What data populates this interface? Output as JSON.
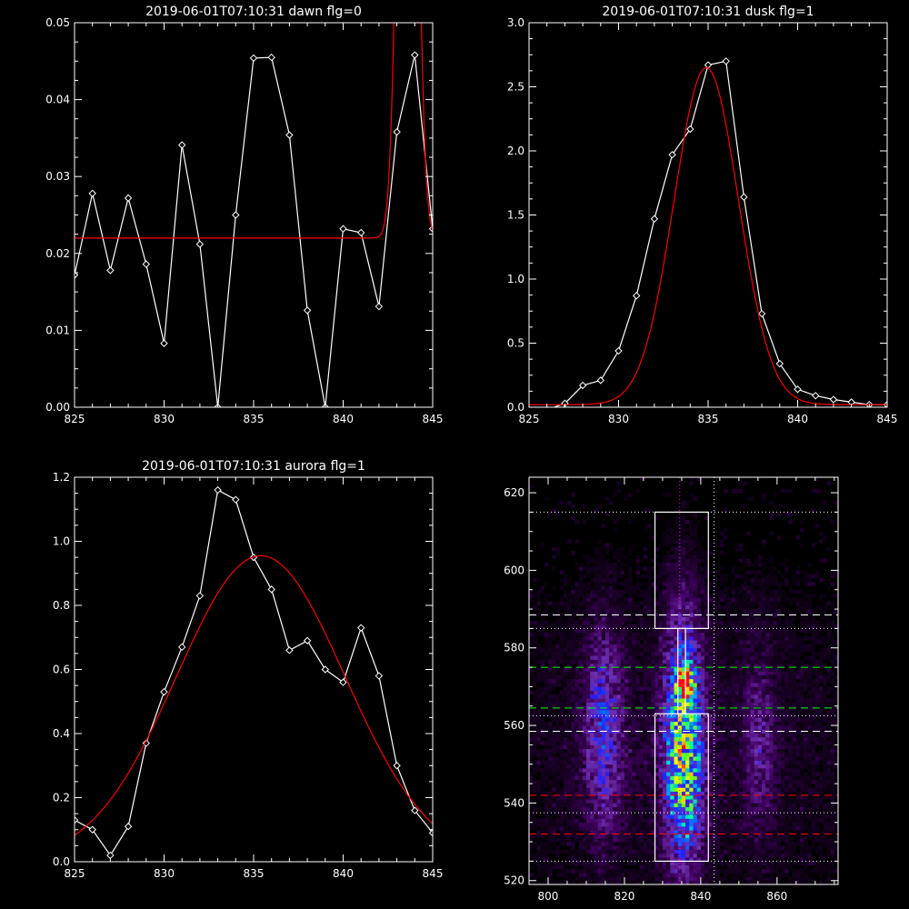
{
  "chart_data": [
    {
      "type": "line",
      "title": "2019-06-01T07:10:31 dawn flg=0",
      "xlim": [
        825,
        845
      ],
      "ylim": [
        0,
        0.05
      ],
      "xticks": [
        "825",
        "830",
        "835",
        "840",
        "845"
      ],
      "yticks": [
        "0.00",
        "0.01",
        "0.02",
        "0.03",
        "0.04",
        "0.05"
      ],
      "series": [
        {
          "color": "#ffffff",
          "marker": "diamond",
          "x": [
            825,
            826,
            827,
            828,
            829,
            830,
            831,
            832,
            833,
            834,
            835,
            836,
            837,
            838,
            839,
            840,
            841,
            842,
            843,
            844,
            845
          ],
          "y": [
            0.0172,
            0.0278,
            0.0178,
            0.0272,
            0.0186,
            0.0083,
            0.0341,
            0.0212,
            0.0,
            0.025,
            0.0454,
            0.0455,
            0.0354,
            0.0126,
            0.0,
            0.0232,
            0.0227,
            0.0131,
            0.0358,
            0.0458,
            0.0232
          ]
        },
        {
          "color": "#ff0000",
          "marker": "none",
          "model": "gaussian",
          "baseline": 0.022,
          "amplitude": 0.12,
          "center": 843.6,
          "sigma": 0.45
        }
      ]
    },
    {
      "type": "line",
      "title": "2019-06-01T07:10:31 dusk flg=1",
      "xlim": [
        825,
        845
      ],
      "ylim": [
        0,
        3.0
      ],
      "xticks": [
        "825",
        "830",
        "835",
        "840",
        "845"
      ],
      "yticks": [
        "0.0",
        "0.5",
        "1.0",
        "1.5",
        "2.0",
        "2.5",
        "3.0"
      ],
      "series": [
        {
          "color": "#ffffff",
          "marker": "diamond",
          "x": [
            825,
            826,
            827,
            828,
            829,
            830,
            831,
            832,
            833,
            834,
            835,
            836,
            837,
            838,
            839,
            840,
            841,
            842,
            843,
            844,
            845
          ],
          "y": [
            -0.02,
            -0.02,
            0.03,
            0.17,
            0.21,
            0.44,
            0.87,
            1.47,
            1.97,
            2.17,
            2.67,
            2.7,
            1.64,
            0.73,
            0.34,
            0.14,
            0.09,
            0.06,
            0.04,
            0.02,
            0.02
          ]
        },
        {
          "color": "#ff0000",
          "marker": "none",
          "model": "gaussian",
          "baseline": 0.02,
          "amplitude": 2.63,
          "center": 834.9,
          "sigma": 1.8
        }
      ]
    },
    {
      "type": "line",
      "title": "2019-06-01T07:10:31 aurora flg=1",
      "xlim": [
        825,
        845
      ],
      "ylim": [
        0,
        1.2
      ],
      "xticks": [
        "825",
        "830",
        "835",
        "840",
        "845"
      ],
      "yticks": [
        "0.0",
        "0.2",
        "0.4",
        "0.6",
        "0.8",
        "1.0",
        "1.2"
      ],
      "series": [
        {
          "color": "#ffffff",
          "marker": "diamond",
          "x": [
            825,
            826,
            827,
            828,
            829,
            830,
            831,
            832,
            833,
            834,
            835,
            836,
            837,
            838,
            839,
            840,
            841,
            842,
            843,
            844,
            845
          ],
          "y": [
            0.13,
            0.1,
            0.02,
            0.11,
            0.37,
            0.53,
            0.67,
            0.83,
            1.16,
            1.13,
            0.95,
            0.85,
            0.66,
            0.69,
            0.6,
            0.56,
            0.73,
            0.58,
            0.3,
            0.16,
            0.09
          ]
        },
        {
          "color": "#ff0000",
          "marker": "none",
          "model": "gaussian",
          "baseline": 0.0,
          "amplitude": 0.955,
          "center": 835.4,
          "sigma": 4.7
        }
      ]
    },
    {
      "type": "heatmap",
      "title": "",
      "xlim": [
        795,
        876
      ],
      "ylim": [
        519,
        624
      ],
      "xticks": [
        "800",
        "820",
        "840",
        "860"
      ],
      "yticks": [
        "520",
        "540",
        "560",
        "580",
        "600",
        "620"
      ],
      "colormap": [
        "#000000",
        "#400060",
        "#7030b0",
        "#2020ff",
        "#0090ff",
        "#00ffa0",
        "#80ff00",
        "#ffff00",
        "#ff8000",
        "#ff0000"
      ],
      "intensity_sources": [
        {
          "x": 835.5,
          "y": 571,
          "sx": 1.3,
          "sy": 2.5,
          "amp": 7.0
        },
        {
          "x": 835,
          "y": 558,
          "sx": 3.2,
          "sy": 20,
          "amp": 3.2
        },
        {
          "x": 835,
          "y": 545,
          "sx": 3.5,
          "sy": 13,
          "amp": 1.6
        },
        {
          "x": 814,
          "y": 558,
          "sx": 3.5,
          "sy": 17,
          "amp": 1.7
        },
        {
          "x": 855,
          "y": 556,
          "sx": 2.8,
          "sy": 15,
          "amp": 0.9
        },
        {
          "x": 835,
          "y": 555,
          "sx": 40,
          "sy": 30,
          "amp": 0.35
        }
      ],
      "box_regions": [
        {
          "x0": 828,
          "x1": 842,
          "y0": 585,
          "y1": 615
        },
        {
          "x0": 828,
          "x1": 842,
          "y0": 525,
          "y1": 563
        },
        {
          "x0": 834,
          "x1": 836,
          "y0": 563,
          "y1": 585
        }
      ],
      "horizontal_lines": [
        {
          "y": 615,
          "color": "#ffffff",
          "style": "dotted"
        },
        {
          "y": 588.5,
          "color": "#ffffff",
          "style": "dashed"
        },
        {
          "y": 585,
          "color": "#ffffff",
          "style": "dotted"
        },
        {
          "y": 575,
          "color": "#00ff00",
          "style": "dashed"
        },
        {
          "y": 564.5,
          "color": "#00ff00",
          "style": "dashed"
        },
        {
          "y": 562.5,
          "color": "#ffffff",
          "style": "dotted"
        },
        {
          "y": 558.5,
          "color": "#ffffff",
          "style": "dashed"
        },
        {
          "y": 542,
          "color": "#ff0000",
          "style": "dashed"
        },
        {
          "y": 537.5,
          "color": "#ffffff",
          "style": "dotted"
        },
        {
          "y": 532,
          "color": "#ff0000",
          "style": "dashed"
        },
        {
          "y": 525,
          "color": "#ffffff",
          "style": "dotted"
        }
      ],
      "vertical_lines": [
        {
          "x": 834.5,
          "color": "#ff00ff",
          "style": "dotted"
        },
        {
          "x": 843.5,
          "color": "#ffffff",
          "style": "dotted"
        }
      ]
    }
  ]
}
